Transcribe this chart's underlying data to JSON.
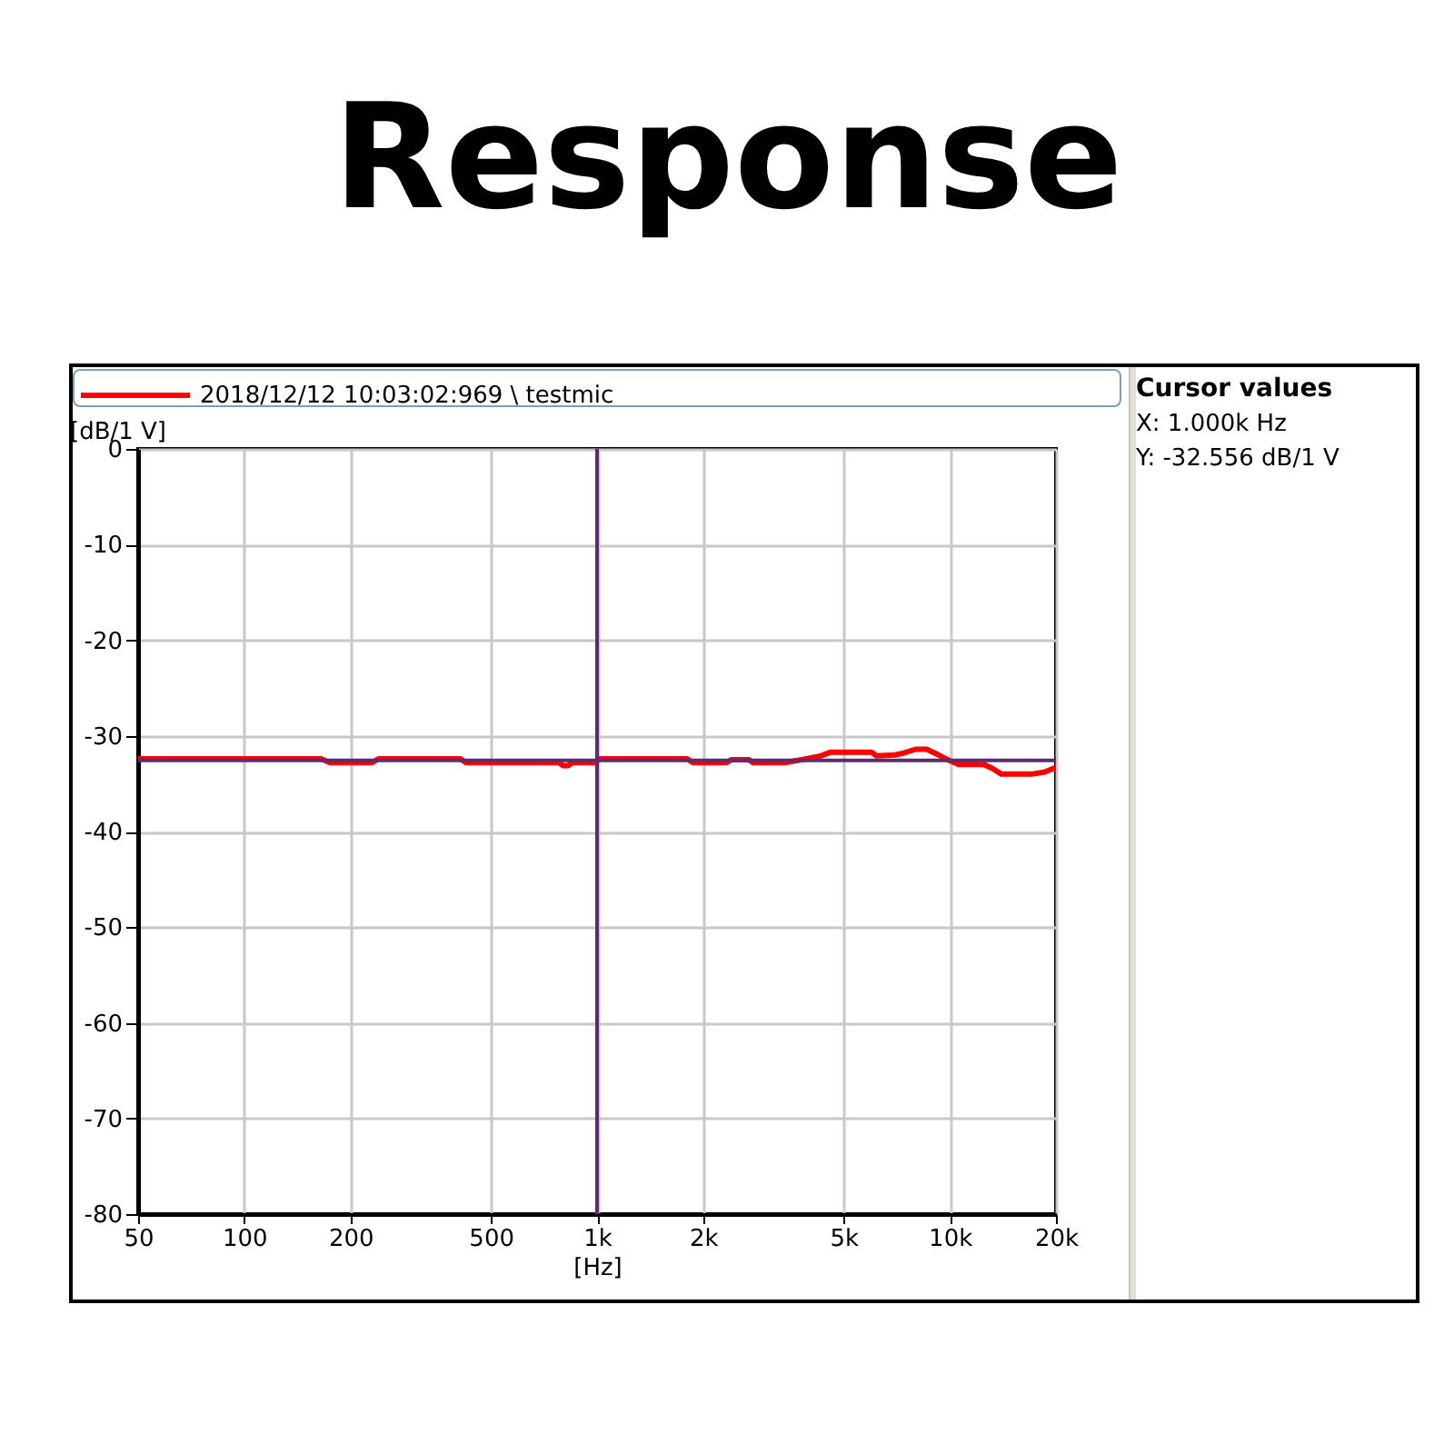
{
  "chart_data": {
    "type": "line",
    "title": "Response",
    "xlabel": "[Hz]",
    "ylabel": "[dB/1 V]",
    "x": [
      50,
      165,
      175,
      230,
      240,
      410,
      425,
      780,
      800,
      830,
      850,
      990,
      1010,
      1800,
      1870,
      2330,
      2400,
      2700,
      2770,
      3400,
      3800,
      4300,
      4600,
      6000,
      6200,
      7000,
      7400,
      8000,
      8600,
      9300,
      10000,
      10600,
      12500,
      13200,
      14000,
      17000,
      18500,
      20000
    ],
    "series": [
      {
        "name": "2018/12/12 10:03:02:969 \\ testmic",
        "color": "#ff0000",
        "values": [
          -32.4,
          -32.4,
          -32.8,
          -32.8,
          -32.4,
          -32.4,
          -32.8,
          -32.8,
          -33.1,
          -33.1,
          -32.8,
          -32.8,
          -32.4,
          -32.4,
          -32.8,
          -32.8,
          -32.5,
          -32.5,
          -32.8,
          -32.8,
          -32.5,
          -32.1,
          -31.7,
          -31.7,
          -32.1,
          -32.0,
          -31.8,
          -31.4,
          -31.4,
          -32.0,
          -32.6,
          -33.0,
          -33.0,
          -33.4,
          -34.0,
          -34.0,
          -33.8,
          -33.3
        ]
      }
    ],
    "xlim": [
      50,
      20000
    ],
    "xticks": [
      50,
      100,
      200,
      500,
      {
        "value": 1000,
        "label": "1k"
      },
      {
        "value": 2000,
        "label": "2k"
      },
      {
        "value": 5000,
        "label": "5k"
      },
      {
        "value": 10000,
        "label": "10k"
      },
      {
        "value": 20000,
        "label": "20k"
      }
    ],
    "ylim": [
      -80,
      0
    ],
    "yticks": [
      -80,
      -70,
      -60,
      -50,
      -40,
      -30,
      -20,
      -10,
      0
    ],
    "log": "x",
    "grid": true,
    "legend": "top",
    "ref_lines": [
      {
        "axis": "x",
        "value": 1000,
        "color": "#5c2d6e"
      },
      {
        "axis": "y",
        "value": -32.556,
        "color": "#5c2d6e"
      }
    ],
    "annotations": [
      "Cursor values",
      "X: 1.000k Hz",
      "Y: -32.556 dB/1 V"
    ]
  }
}
